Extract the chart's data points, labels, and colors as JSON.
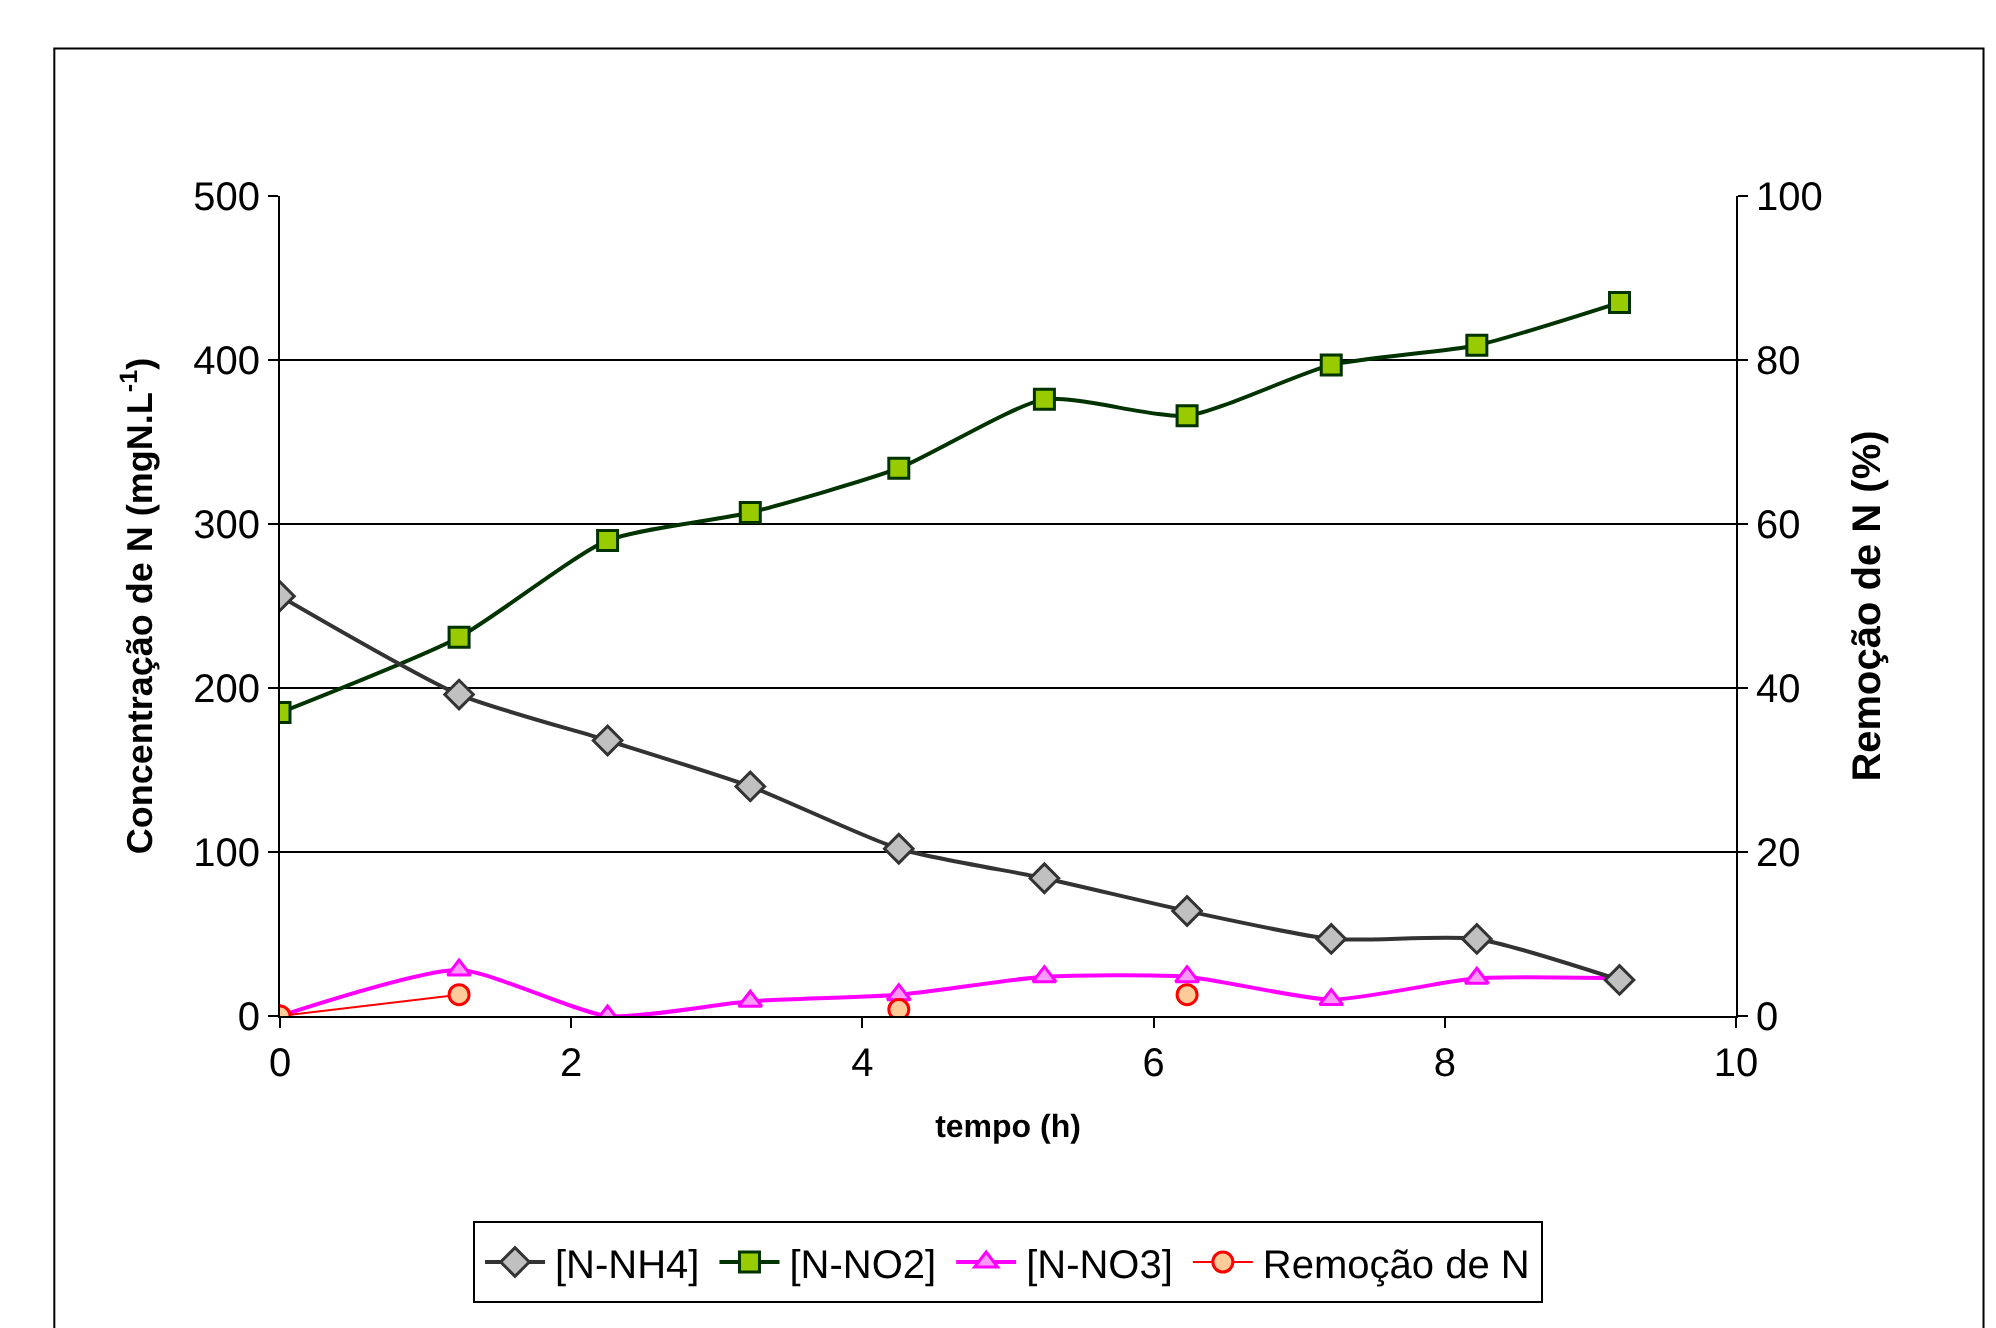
{
  "chart_data": {
    "type": "line",
    "xlabel": "tempo (h)",
    "ylabel": "Concentração de N (mgN.L$^{-1}$)",
    "y2label": "Remoção de N (%)",
    "x": [
      0,
      1.23,
      2.25,
      3.23,
      4.25,
      5.25,
      6.23,
      7.22,
      8.22,
      9.2
    ],
    "series": [
      {
        "name": "[N-NH4]",
        "color": "#333333",
        "marker": "diamond",
        "values": [
          256,
          196,
          168,
          140,
          102,
          84,
          64,
          47,
          47,
          22
        ]
      },
      {
        "name": "[N-NO2]",
        "color": "#003300",
        "marker": "square",
        "values": [
          185,
          231,
          290,
          307,
          334,
          376,
          366,
          397,
          409,
          435
        ]
      },
      {
        "name": "[N-NO3]",
        "color": "#ff00ff",
        "marker": "triangle",
        "values": [
          0,
          28,
          0,
          9,
          13,
          24,
          24,
          10,
          23,
          23
        ]
      },
      {
        "name": "Remoção de N",
        "color": "#ff0000",
        "marker": "circle",
        "axis": "y2",
        "values": [
          0,
          2.6,
          null,
          null,
          0.8,
          null,
          2.6,
          null,
          null,
          null
        ]
      }
    ],
    "xlim": [
      0,
      10
    ],
    "xticks": [
      0,
      2,
      4,
      6,
      8,
      10
    ],
    "ylim": [
      0,
      500
    ],
    "yticks": [
      0,
      100,
      200,
      300,
      400,
      500
    ],
    "y2lim": [
      0,
      100
    ],
    "y2ticks": [
      0,
      20,
      40,
      60,
      80,
      100
    ],
    "grid": "y",
    "legend": "bottom",
    "line_style": "solid"
  }
}
